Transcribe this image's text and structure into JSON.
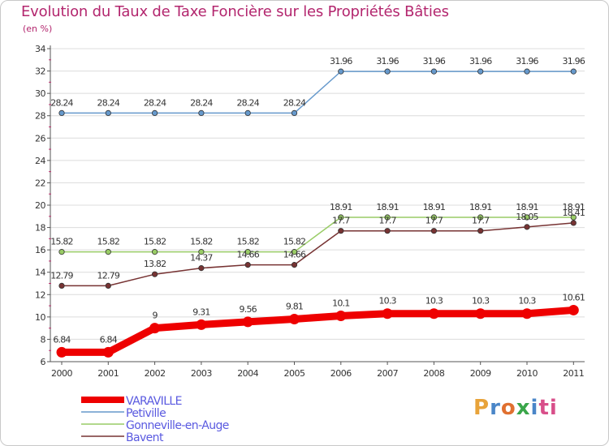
{
  "title": "Evolution du Taux de Taxe Foncière sur les Propriétés Bâties",
  "subtitle": "(en %)",
  "logo": {
    "text": "Proxiti",
    "parts": [
      "P",
      "r",
      "o",
      "x",
      "i",
      "ti"
    ]
  },
  "chart_data": {
    "type": "line",
    "title": "Evolution du Taux de Taxe Foncière sur les Propriétés Bâties",
    "ylabel": "(en %)",
    "xlabel": "",
    "ylim": [
      6,
      34
    ],
    "yticks": [
      6,
      8,
      10,
      12,
      14,
      16,
      18,
      20,
      22,
      24,
      26,
      28,
      30,
      32,
      34
    ],
    "grid": "horizontal",
    "legend_position": "bottom-left",
    "categories": [
      "2000",
      "2001",
      "2002",
      "2003",
      "2004",
      "2005",
      "2006",
      "2007",
      "2008",
      "2009",
      "2010",
      "2011"
    ],
    "series": [
      {
        "name": "VARAVILLE",
        "color": "#ee0000",
        "values": [
          6.84,
          6.84,
          9,
          9.31,
          9.56,
          9.81,
          10.1,
          10.3,
          10.3,
          10.3,
          10.3,
          10.61
        ],
        "labels": [
          "6.84",
          "6.84",
          "9",
          "9.31",
          "9.56",
          "9.81",
          "10.1",
          "10.3",
          "10.3",
          "10.3",
          "10.3",
          "10.61"
        ]
      },
      {
        "name": "Petiville",
        "color": "#6699cc",
        "values": [
          28.24,
          28.24,
          28.24,
          28.24,
          28.24,
          28.24,
          31.96,
          31.96,
          31.96,
          31.96,
          31.96,
          31.96
        ],
        "labels": [
          "28.24",
          "28.24",
          "28.24",
          "28.24",
          "28.24",
          "28.24",
          "31.96",
          "31.96",
          "31.96",
          "31.96",
          "31.96",
          "31.96"
        ]
      },
      {
        "name": "Gonneville-en-Auge",
        "color": "#99cc66",
        "values": [
          15.82,
          15.82,
          15.82,
          15.82,
          15.82,
          15.82,
          18.91,
          18.91,
          18.91,
          18.91,
          18.91,
          18.91
        ],
        "labels": [
          "15.82",
          "15.82",
          "15.82",
          "15.82",
          "15.82",
          "15.82",
          "18.91",
          "18.91",
          "18.91",
          "18.91",
          "18.91",
          "18.91"
        ]
      },
      {
        "name": "Bavent",
        "color": "#773333",
        "values": [
          12.79,
          12.79,
          13.82,
          14.37,
          14.66,
          14.66,
          17.7,
          17.7,
          17.7,
          17.7,
          18.05,
          18.41
        ],
        "labels": [
          "12.79",
          "12.79",
          "13.82",
          "14.37",
          "14.66",
          "14.66",
          "17.7",
          "17.7",
          "17.7",
          "17.7",
          "18.05",
          "18.41"
        ]
      }
    ]
  }
}
